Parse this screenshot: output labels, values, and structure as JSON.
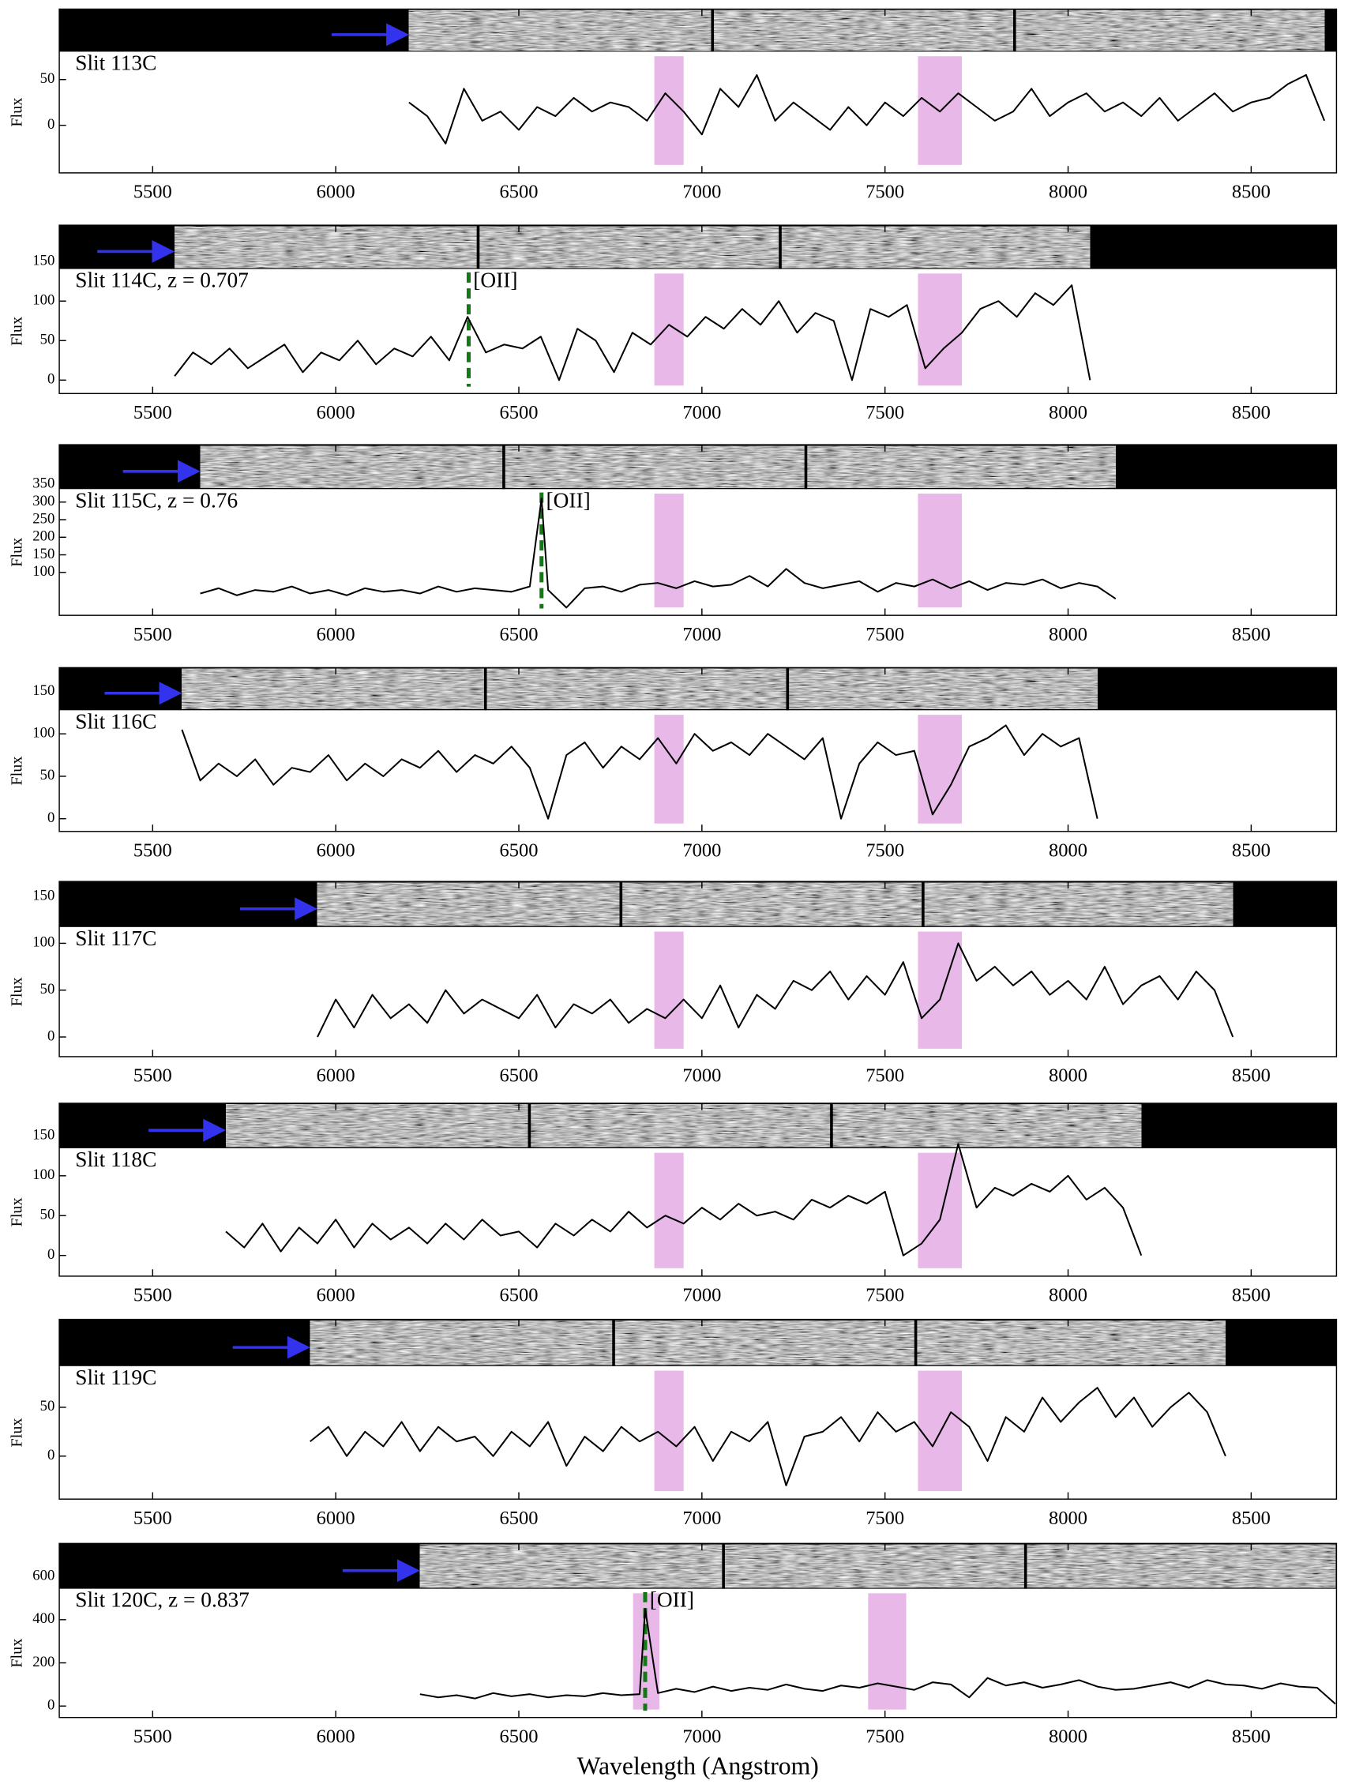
{
  "chart_data": [
    {
      "type": "line",
      "label": "Slit 113C",
      "ylabel": "Flux",
      "color": "#000000",
      "label_color": "#2020c8",
      "shade_color": "#e8b8e8",
      "xlim": [
        5245,
        8733
      ],
      "ylim": [
        -52,
        127
      ],
      "xticks": [
        5500,
        6000,
        6500,
        7000,
        7500,
        8000,
        8500
      ],
      "yticks": [
        0,
        50
      ],
      "shaded_regions": [
        [
          6870,
          6950
        ],
        [
          7590,
          7710
        ]
      ],
      "x": [
        6200,
        6250,
        6300,
        6350,
        6400,
        6450,
        6500,
        6550,
        6600,
        6650,
        6700,
        6750,
        6800,
        6850,
        6900,
        6950,
        7000,
        7050,
        7100,
        7150,
        7200,
        7250,
        7300,
        7350,
        7400,
        7450,
        7500,
        7550,
        7600,
        7650,
        7700,
        7750,
        7800,
        7850,
        7900,
        7950,
        8000,
        8050,
        8100,
        8150,
        8200,
        8250,
        8300,
        8350,
        8400,
        8450,
        8500,
        8550,
        8600,
        8650,
        8700
      ],
      "values": [
        25,
        10,
        -20,
        40,
        5,
        15,
        -5,
        20,
        10,
        30,
        15,
        25,
        20,
        5,
        35,
        15,
        -10,
        40,
        20,
        55,
        5,
        25,
        10,
        -5,
        20,
        0,
        25,
        10,
        30,
        15,
        35,
        20,
        5,
        15,
        40,
        10,
        25,
        35,
        15,
        25,
        10,
        30,
        5,
        20,
        35,
        15,
        25,
        30,
        45,
        55,
        5
      ]
    },
    {
      "type": "line",
      "label": "Slit 114C, z = 0.707",
      "ylabel": "Flux",
      "color": "#000000",
      "label_color": "#2020c8",
      "shade_color": "#e8b8e8",
      "xlim": [
        5245,
        8733
      ],
      "ylim": [
        -17,
        196
      ],
      "xticks": [
        5500,
        6000,
        6500,
        7000,
        7500,
        8000,
        8500
      ],
      "yticks": [
        0,
        50,
        100,
        150
      ],
      "shaded_regions": [
        [
          6870,
          6950
        ],
        [
          7590,
          7710
        ]
      ],
      "lines": [
        {
          "x": 6363,
          "label": "[OII]",
          "color": "#127a12"
        }
      ],
      "x": [
        5560,
        5610,
        5660,
        5710,
        5760,
        5810,
        5860,
        5910,
        5960,
        6010,
        6060,
        6110,
        6160,
        6210,
        6260,
        6310,
        6360,
        6410,
        6460,
        6510,
        6560,
        6610,
        6660,
        6710,
        6760,
        6810,
        6860,
        6910,
        6960,
        7010,
        7060,
        7110,
        7160,
        7210,
        7260,
        7310,
        7360,
        7410,
        7460,
        7510,
        7560,
        7610,
        7660,
        7710,
        7760,
        7810,
        7860,
        7910,
        7960,
        8010,
        8060
      ],
      "values": [
        5,
        35,
        20,
        40,
        15,
        30,
        45,
        10,
        35,
        25,
        50,
        20,
        40,
        30,
        55,
        25,
        80,
        35,
        45,
        40,
        55,
        0,
        65,
        50,
        10,
        60,
        45,
        70,
        55,
        80,
        65,
        90,
        70,
        100,
        60,
        85,
        75,
        0,
        90,
        80,
        95,
        15,
        40,
        60,
        90,
        100,
        80,
        110,
        95,
        120,
        0
      ]
    },
    {
      "type": "line",
      "label": "Slit 115C, z = 0.76",
      "ylabel": "Flux",
      "color": "#000000",
      "label_color": "#2020c8",
      "shade_color": "#e8b8e8",
      "xlim": [
        5245,
        8733
      ],
      "ylim": [
        -22,
        463
      ],
      "xticks": [
        5500,
        6000,
        6500,
        7000,
        7500,
        8000,
        8500
      ],
      "yticks": [
        100,
        150,
        200,
        250,
        300,
        350
      ],
      "shaded_regions": [
        [
          6870,
          6950
        ],
        [
          7590,
          7710
        ]
      ],
      "lines": [
        {
          "x": 6562,
          "label": "[OII]",
          "color": "#127a12"
        }
      ],
      "x": [
        5630,
        5680,
        5730,
        5780,
        5830,
        5880,
        5930,
        5980,
        6030,
        6080,
        6130,
        6180,
        6230,
        6280,
        6330,
        6380,
        6430,
        6480,
        6530,
        6562,
        6580,
        6630,
        6680,
        6730,
        6780,
        6830,
        6880,
        6930,
        6980,
        7030,
        7080,
        7130,
        7180,
        7230,
        7280,
        7330,
        7380,
        7430,
        7480,
        7530,
        7580,
        7630,
        7680,
        7730,
        7780,
        7830,
        7880,
        7930,
        7980,
        8030,
        8080,
        8130
      ],
      "values": [
        40,
        55,
        35,
        50,
        45,
        60,
        40,
        50,
        35,
        55,
        45,
        50,
        40,
        60,
        45,
        55,
        50,
        45,
        60,
        310,
        50,
        0,
        55,
        60,
        45,
        65,
        70,
        55,
        75,
        60,
        65,
        90,
        60,
        110,
        70,
        55,
        65,
        75,
        45,
        70,
        60,
        80,
        55,
        75,
        50,
        70,
        65,
        80,
        55,
        70,
        60,
        25
      ]
    },
    {
      "type": "line",
      "label": "Slit 116C",
      "ylabel": "Flux",
      "color": "#000000",
      "label_color": "#2020c8",
      "shade_color": "#e8b8e8",
      "xlim": [
        5245,
        8733
      ],
      "ylim": [
        -15,
        178
      ],
      "xticks": [
        5500,
        6000,
        6500,
        7000,
        7500,
        8000,
        8500
      ],
      "yticks": [
        0,
        50,
        100,
        150
      ],
      "shaded_regions": [
        [
          6870,
          6950
        ],
        [
          7590,
          7710
        ]
      ],
      "x": [
        5580,
        5630,
        5680,
        5730,
        5780,
        5830,
        5880,
        5930,
        5980,
        6030,
        6080,
        6130,
        6180,
        6230,
        6280,
        6330,
        6380,
        6430,
        6480,
        6530,
        6580,
        6630,
        6680,
        6730,
        6780,
        6830,
        6880,
        6930,
        6980,
        7030,
        7080,
        7130,
        7180,
        7230,
        7280,
        7330,
        7380,
        7430,
        7480,
        7530,
        7580,
        7630,
        7680,
        7730,
        7780,
        7830,
        7880,
        7930,
        7980,
        8030,
        8080
      ],
      "values": [
        105,
        45,
        65,
        50,
        70,
        40,
        60,
        55,
        75,
        45,
        65,
        50,
        70,
        60,
        80,
        55,
        75,
        65,
        85,
        60,
        0,
        75,
        90,
        60,
        85,
        70,
        95,
        65,
        100,
        80,
        90,
        75,
        100,
        85,
        70,
        95,
        0,
        65,
        90,
        75,
        80,
        5,
        40,
        85,
        95,
        110,
        75,
        100,
        85,
        95,
        0
      ]
    },
    {
      "type": "line",
      "label": "Slit 117C",
      "ylabel": "Flux",
      "color": "#000000",
      "label_color": "#2020c8",
      "shade_color": "#e8b8e8",
      "xlim": [
        5245,
        8733
      ],
      "ylim": [
        -21,
        166
      ],
      "xticks": [
        5500,
        6000,
        6500,
        7000,
        7500,
        8000,
        8500
      ],
      "yticks": [
        0,
        50,
        100,
        150
      ],
      "shaded_regions": [
        [
          6870,
          6950
        ],
        [
          7590,
          7710
        ]
      ],
      "x": [
        5950,
        6000,
        6050,
        6100,
        6150,
        6200,
        6250,
        6300,
        6350,
        6400,
        6450,
        6500,
        6550,
        6600,
        6650,
        6700,
        6750,
        6800,
        6850,
        6900,
        6950,
        7000,
        7050,
        7100,
        7150,
        7200,
        7250,
        7300,
        7350,
        7400,
        7450,
        7500,
        7550,
        7600,
        7650,
        7700,
        7750,
        7800,
        7850,
        7900,
        7950,
        8000,
        8050,
        8100,
        8150,
        8200,
        8250,
        8300,
        8350,
        8400,
        8450
      ],
      "values": [
        0,
        40,
        10,
        45,
        20,
        35,
        15,
        50,
        25,
        40,
        30,
        20,
        45,
        10,
        35,
        25,
        40,
        15,
        30,
        20,
        40,
        20,
        55,
        10,
        45,
        30,
        60,
        50,
        70,
        40,
        65,
        45,
        80,
        20,
        40,
        100,
        60,
        75,
        55,
        70,
        45,
        60,
        40,
        75,
        35,
        55,
        65,
        40,
        70,
        50,
        0
      ]
    },
    {
      "type": "line",
      "label": "Slit 118C",
      "ylabel": "Flux",
      "color": "#000000",
      "label_color": "#2020c8",
      "shade_color": "#e8b8e8",
      "xlim": [
        5245,
        8733
      ],
      "ylim": [
        -26,
        191
      ],
      "xticks": [
        5500,
        6000,
        6500,
        7000,
        7500,
        8000,
        8500
      ],
      "yticks": [
        0,
        50,
        100,
        150
      ],
      "shaded_regions": [
        [
          6870,
          6950
        ],
        [
          7590,
          7710
        ]
      ],
      "x": [
        5700,
        5750,
        5800,
        5850,
        5900,
        5950,
        6000,
        6050,
        6100,
        6150,
        6200,
        6250,
        6300,
        6350,
        6400,
        6450,
        6500,
        6550,
        6600,
        6650,
        6700,
        6750,
        6800,
        6850,
        6900,
        6950,
        7000,
        7050,
        7100,
        7150,
        7200,
        7250,
        7300,
        7350,
        7400,
        7450,
        7500,
        7550,
        7600,
        7650,
        7700,
        7750,
        7800,
        7850,
        7900,
        7950,
        8000,
        8050,
        8100,
        8150,
        8200
      ],
      "values": [
        30,
        10,
        40,
        5,
        35,
        15,
        45,
        10,
        40,
        20,
        35,
        15,
        40,
        20,
        45,
        25,
        30,
        10,
        40,
        25,
        45,
        30,
        55,
        35,
        50,
        40,
        60,
        45,
        65,
        50,
        55,
        45,
        70,
        60,
        75,
        65,
        80,
        0,
        15,
        45,
        140,
        60,
        85,
        75,
        90,
        80,
        100,
        70,
        85,
        60,
        0
      ]
    },
    {
      "type": "line",
      "label": "Slit 119C",
      "ylabel": "Flux",
      "color": "#000000",
      "label_color": "#2020c8",
      "shade_color": "#e8b8e8",
      "xlim": [
        5245,
        8733
      ],
      "ylim": [
        -44,
        140
      ],
      "xticks": [
        5500,
        6000,
        6500,
        7000,
        7500,
        8000,
        8500
      ],
      "yticks": [
        0,
        50
      ],
      "shaded_regions": [
        [
          6870,
          6950
        ],
        [
          7590,
          7710
        ]
      ],
      "x": [
        5930,
        5980,
        6030,
        6080,
        6130,
        6180,
        6230,
        6280,
        6330,
        6380,
        6430,
        6480,
        6530,
        6580,
        6630,
        6680,
        6730,
        6780,
        6830,
        6880,
        6930,
        6980,
        7030,
        7080,
        7130,
        7180,
        7230,
        7280,
        7330,
        7380,
        7430,
        7480,
        7530,
        7580,
        7630,
        7680,
        7730,
        7780,
        7830,
        7880,
        7930,
        7980,
        8030,
        8080,
        8130,
        8180,
        8230,
        8280,
        8330,
        8380,
        8430
      ],
      "values": [
        15,
        30,
        0,
        25,
        10,
        35,
        5,
        30,
        15,
        20,
        0,
        25,
        10,
        35,
        -10,
        20,
        5,
        30,
        15,
        25,
        10,
        30,
        -5,
        25,
        15,
        35,
        -30,
        20,
        25,
        40,
        15,
        45,
        25,
        35,
        10,
        45,
        30,
        -5,
        40,
        25,
        60,
        35,
        55,
        70,
        40,
        60,
        30,
        50,
        65,
        45,
        0
      ]
    },
    {
      "type": "line",
      "label": "Slit 120C, z = 0.837",
      "ylabel": "Flux",
      "xlabel": "Wavelength (Angstrom)",
      "color": "#000000",
      "label_color": "#2020c8",
      "shade_color": "#e8b8e8",
      "xlim": [
        5245,
        8733
      ],
      "ylim": [
        -53,
        753
      ],
      "xticks": [
        5500,
        6000,
        6500,
        7000,
        7500,
        8000,
        8500
      ],
      "yticks": [
        0,
        200,
        400,
        600
      ],
      "shaded_regions": [
        [
          6812,
          6884
        ],
        [
          7454,
          7558
        ]
      ],
      "lines": [
        {
          "x": 6845,
          "label": "[OII]",
          "color": "#127a12"
        }
      ],
      "x": [
        6230,
        6280,
        6330,
        6380,
        6430,
        6480,
        6530,
        6580,
        6630,
        6680,
        6730,
        6780,
        6830,
        6845,
        6880,
        6930,
        6980,
        7030,
        7080,
        7130,
        7180,
        7230,
        7280,
        7330,
        7380,
        7430,
        7480,
        7530,
        7580,
        7630,
        7680,
        7730,
        7780,
        7830,
        7880,
        7930,
        7980,
        8030,
        8080,
        8130,
        8180,
        8230,
        8280,
        8330,
        8380,
        8430,
        8480,
        8530,
        8580,
        8630,
        8680,
        8730
      ],
      "values": [
        55,
        40,
        50,
        35,
        60,
        45,
        55,
        40,
        50,
        45,
        60,
        50,
        55,
        450,
        60,
        80,
        65,
        90,
        70,
        85,
        75,
        100,
        80,
        70,
        95,
        85,
        105,
        90,
        75,
        110,
        100,
        40,
        130,
        95,
        110,
        85,
        100,
        120,
        90,
        75,
        80,
        95,
        110,
        85,
        120,
        100,
        95,
        80,
        105,
        90,
        85,
        10
      ]
    }
  ]
}
